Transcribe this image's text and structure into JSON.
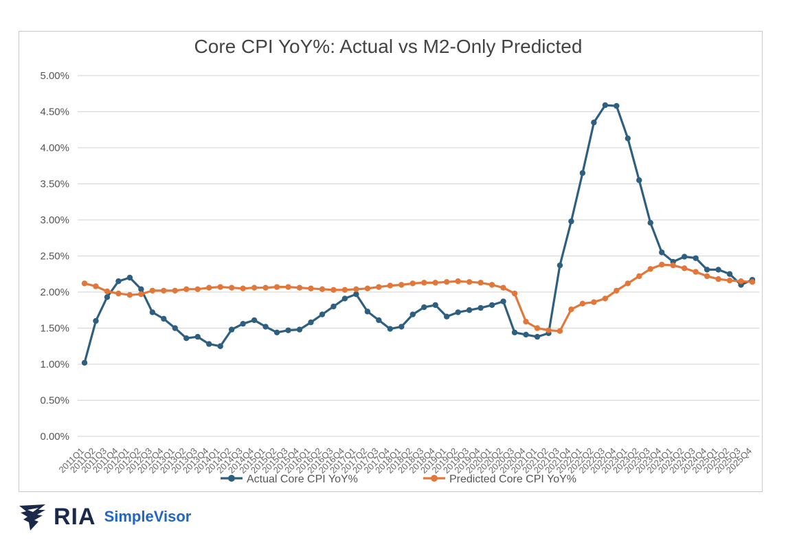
{
  "chart_data": {
    "type": "line",
    "title": "Core CPI YoY%: Actual vs M2-Only Predicted",
    "xlabel": "",
    "ylabel": "",
    "ylim": [
      0,
      5
    ],
    "yticks": [
      "0.00%",
      "0.50%",
      "1.00%",
      "1.50%",
      "2.00%",
      "2.50%",
      "3.00%",
      "3.50%",
      "4.00%",
      "4.50%",
      "5.00%"
    ],
    "grid": true,
    "legend_position": "bottom",
    "categories": [
      "2011Q1",
      "2011Q2",
      "2011Q3",
      "2011Q4",
      "2012Q1",
      "2012Q2",
      "2012Q3",
      "2012Q4",
      "2013Q1",
      "2013Q2",
      "2013Q3",
      "2013Q4",
      "2014Q1",
      "2014Q2",
      "2014Q3",
      "2014Q4",
      "2015Q1",
      "2015Q2",
      "2015Q3",
      "2015Q4",
      "2016Q1",
      "2016Q2",
      "2016Q3",
      "2016Q4",
      "2017Q1",
      "2017Q2",
      "2017Q3",
      "2017Q4",
      "2018Q1",
      "2018Q2",
      "2018Q3",
      "2018Q4",
      "2019Q1",
      "2019Q2",
      "2019Q3",
      "2019Q4",
      "2020Q1",
      "2020Q2",
      "2020Q3",
      "2020Q4",
      "2021Q1",
      "2021Q2",
      "2021Q3",
      "2021Q4",
      "2022Q1",
      "2022Q2",
      "2022Q3",
      "2022Q4",
      "2023Q1",
      "2023Q2",
      "2023Q3",
      "2023Q4",
      "2024Q1",
      "2024Q2",
      "2024Q3",
      "2024Q4",
      "2025Q1",
      "2025Q2",
      "2025Q3",
      "2025Q4"
    ],
    "series": [
      {
        "name": "Actual Core CPI YoY%",
        "color": "#2e5f7f",
        "values": [
          1.02,
          1.6,
          1.93,
          2.15,
          2.2,
          2.04,
          1.72,
          1.63,
          1.5,
          1.36,
          1.38,
          1.28,
          1.25,
          1.48,
          1.56,
          1.61,
          1.52,
          1.44,
          1.47,
          1.48,
          1.58,
          1.69,
          1.8,
          1.91,
          1.97,
          1.73,
          1.61,
          1.49,
          1.52,
          1.69,
          1.79,
          1.82,
          1.66,
          1.72,
          1.75,
          1.78,
          1.82,
          1.87,
          1.44,
          1.41,
          1.38,
          1.43,
          2.37,
          2.98,
          3.65,
          4.35,
          4.59,
          4.58,
          4.13,
          3.55,
          2.96,
          2.55,
          2.42,
          2.49,
          2.47,
          2.31,
          2.31,
          2.25,
          2.1,
          2.17
        ]
      },
      {
        "name": "Predicted Core CPI YoY%",
        "color": "#e2773a",
        "values": [
          2.12,
          2.08,
          2.01,
          1.98,
          1.96,
          1.97,
          2.02,
          2.02,
          2.02,
          2.04,
          2.04,
          2.06,
          2.07,
          2.06,
          2.05,
          2.06,
          2.06,
          2.07,
          2.07,
          2.06,
          2.05,
          2.04,
          2.03,
          2.03,
          2.04,
          2.05,
          2.07,
          2.09,
          2.1,
          2.12,
          2.13,
          2.13,
          2.14,
          2.15,
          2.14,
          2.13,
          2.1,
          2.06,
          1.98,
          1.59,
          1.5,
          1.47,
          1.46,
          1.76,
          1.84,
          1.86,
          1.91,
          2.02,
          2.12,
          2.22,
          2.32,
          2.38,
          2.37,
          2.33,
          2.28,
          2.22,
          2.18,
          2.16,
          2.15,
          2.14
        ]
      }
    ]
  },
  "brand": {
    "ria": "RIA",
    "simplevisor": "SimpleVisor",
    "ria_color": "#1b2a4a",
    "sv_color": "#2266c4"
  }
}
